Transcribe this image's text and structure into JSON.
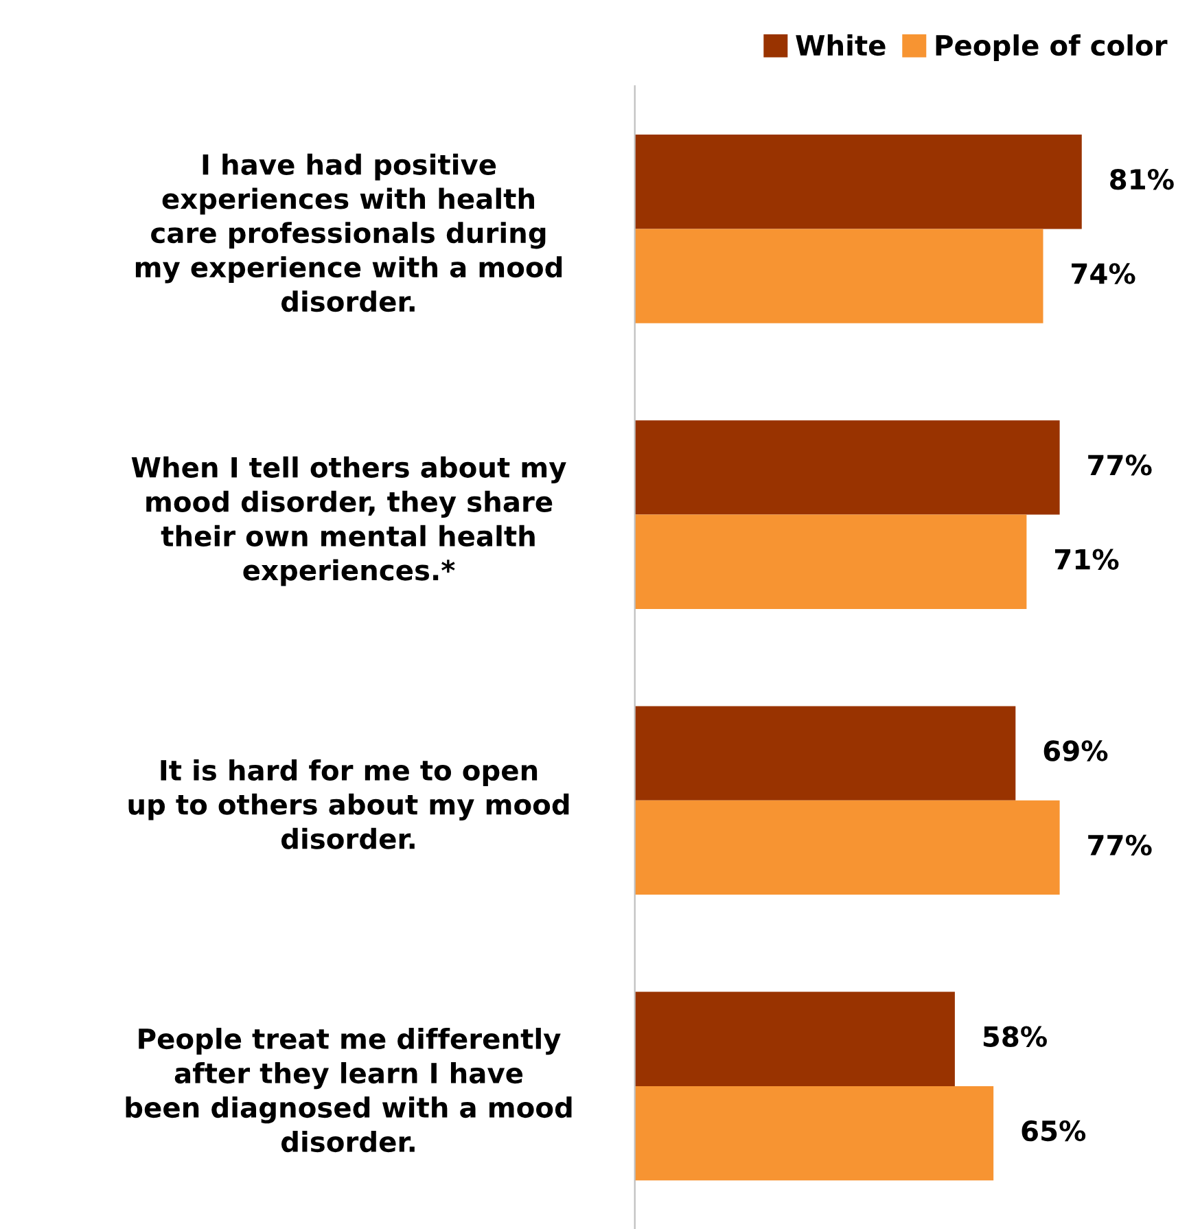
{
  "chart_data": {
    "type": "bar",
    "orientation": "horizontal",
    "legend": "top right",
    "grid": false,
    "categories": [
      "I have had positive experiences with health care professionals during my experience with a mood disorder.",
      "When I tell others about my mood disorder, they share their own mental health experiences.*",
      "It is hard for me to open up to others about my mood disorder.",
      "People treat me differently after they learn I have been diagnosed with a mood disorder."
    ],
    "series": [
      {
        "name": "White",
        "color": "#993300",
        "values": [
          81,
          77,
          69,
          58
        ],
        "value_labels": [
          "81%",
          "77%",
          "69%",
          "58%"
        ]
      },
      {
        "name": "People of color",
        "color": "#f79432",
        "values": [
          74,
          71,
          77,
          65
        ],
        "value_labels": [
          "74%",
          "71%",
          "77%",
          "65%"
        ]
      }
    ]
  }
}
